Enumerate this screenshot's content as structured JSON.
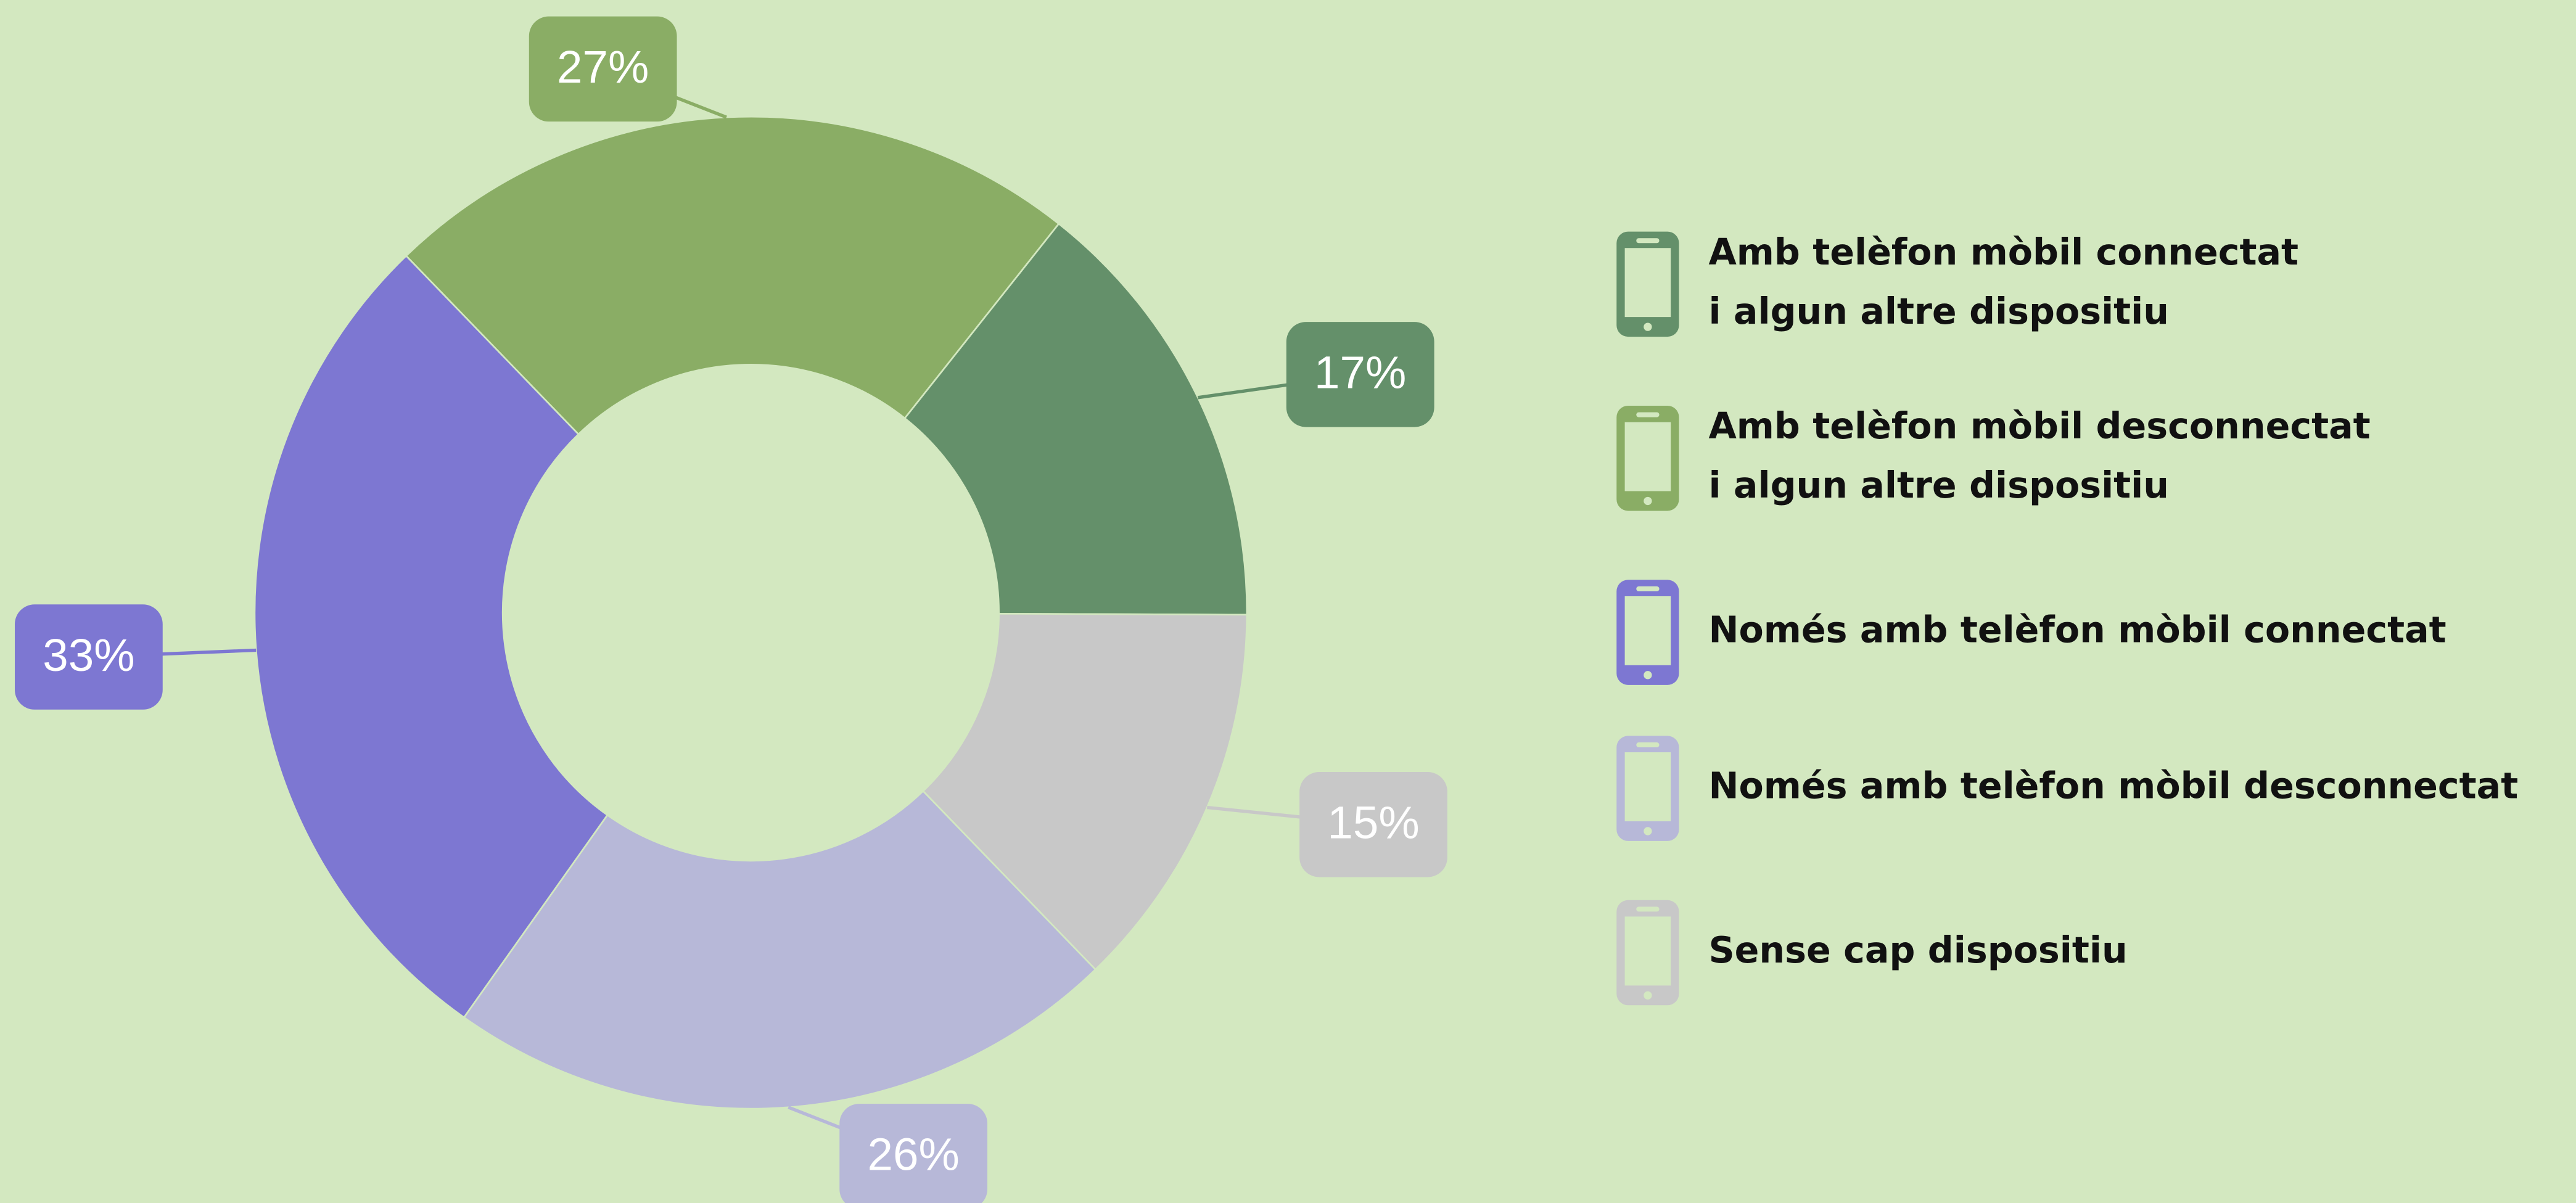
{
  "chart_data": {
    "type": "pie",
    "donut": true,
    "categories": [
      "Amb telèfon mòbil connectat\ni algun altre dispositiu",
      "Amb telèfon mòbil desconnectat\ni algun altre dispositiu",
      "Només amb telèfon mòbil connectat",
      "Només amb telèfon mòbil desconnectat",
      "Sense cap dispositiu"
    ],
    "values": [
      17,
      27,
      33,
      26,
      15
    ],
    "value_labels": [
      "17%",
      "27%",
      "33%",
      "26%",
      "15%"
    ],
    "colors": [
      "#64906a",
      "#8aad65",
      "#7d77d2",
      "#b7b8d8",
      "#c8c8c8"
    ],
    "legend": "right"
  }
}
